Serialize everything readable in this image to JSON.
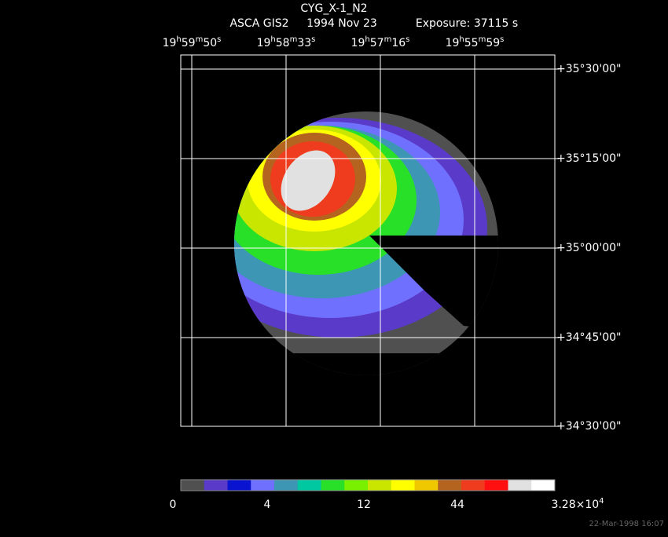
{
  "header": {
    "title": "CYG_X-1_N2",
    "instrument": "ASCA GIS2",
    "date": "1994 Nov 23",
    "exposure": "Exposure: 37115 s"
  },
  "ra_labels": [
    [
      "19",
      "h",
      "59",
      "m",
      "50",
      "s"
    ],
    [
      "19",
      "h",
      "58",
      "m",
      "33",
      "s"
    ],
    [
      "19",
      "h",
      "57",
      "m",
      "16",
      "s"
    ],
    [
      "19",
      "h",
      "55",
      "m",
      "59",
      "s"
    ]
  ],
  "dec_labels": [
    "+35°30'00\"",
    "+35°15'00\"",
    "+35°00'00\"",
    "+34°45'00\"",
    "+34°30'00\""
  ],
  "colorbar": {
    "colors": [
      "#505050",
      "#5a3ac8",
      "#0a14d0",
      "#7070ff",
      "#3c96b4",
      "#00c8a0",
      "#28e028",
      "#78f000",
      "#c8e600",
      "#ffff00",
      "#f0c800",
      "#b4641e",
      "#f03c1e",
      "#ff0f0f",
      "#e1e1e1",
      "#ffffff"
    ],
    "labels": [
      [
        "0"
      ],
      [
        "4"
      ],
      [
        "12"
      ],
      [
        "44"
      ],
      [
        "3.28×10",
        "4"
      ]
    ]
  },
  "timestamp": "22-Mar-1998 16:07"
}
